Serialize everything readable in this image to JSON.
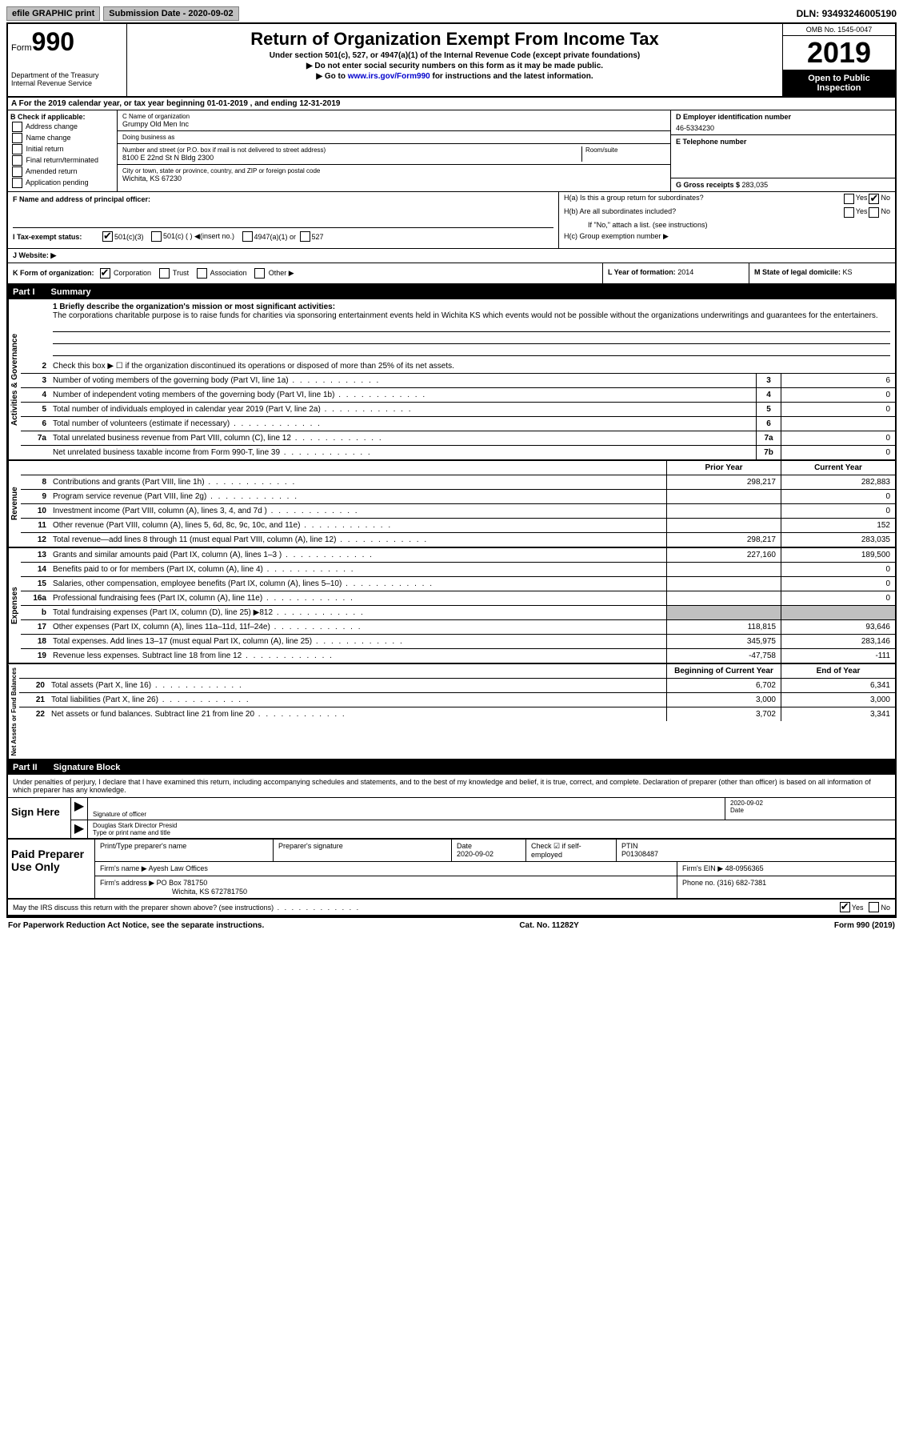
{
  "top": {
    "efile": "efile GRAPHIC print",
    "subdate_label": "Submission Date - ",
    "subdate": "2020-09-02",
    "dln_label": "DLN: ",
    "dln": "93493246005190"
  },
  "header": {
    "form_label": "Form",
    "form_num": "990",
    "dept": "Department of the Treasury\nInternal Revenue Service",
    "title": "Return of Organization Exempt From Income Tax",
    "sub1": "Under section 501(c), 527, or 4947(a)(1) of the Internal Revenue Code (except private foundations)",
    "sub2": "▶ Do not enter social security numbers on this form as it may be made public.",
    "sub3_pre": "▶ Go to ",
    "sub3_link": "www.irs.gov/Form990",
    "sub3_post": " for instructions and the latest information.",
    "omb": "OMB No. 1545-0047",
    "year": "2019",
    "open": "Open to Public Inspection"
  },
  "rowA": "A For the 2019 calendar year, or tax year beginning 01-01-2019    , and ending 12-31-2019",
  "B": {
    "title": "B Check if applicable:",
    "opts": [
      "Address change",
      "Name change",
      "Initial return",
      "Final return/terminated",
      "Amended return",
      "Application pending"
    ]
  },
  "C": {
    "name_lbl": "C Name of organization",
    "name": "Grumpy Old Men Inc",
    "dba_lbl": "Doing business as",
    "dba": "",
    "street_lbl": "Number and street (or P.O. box if mail is not delivered to street address)",
    "room_lbl": "Room/suite",
    "street": "8100 E 22nd St N Bldg 2300",
    "city_lbl": "City or town, state or province, country, and ZIP or foreign postal code",
    "city": "Wichita, KS  67230"
  },
  "D": {
    "lbl": "D Employer identification number",
    "val": "46-5334230"
  },
  "E": {
    "lbl": "E Telephone number",
    "val": ""
  },
  "G": {
    "lbl": "G Gross receipts $ ",
    "val": "283,035"
  },
  "F": {
    "lbl": "F  Name and address of principal officer:",
    "val": ""
  },
  "H": {
    "a": "H(a)  Is this a group return for subordinates?",
    "a_yes": "Yes",
    "a_no": "No",
    "b": "H(b)  Are all subordinates included?",
    "b_note": "If \"No,\" attach a list. (see instructions)",
    "c": "H(c)  Group exemption number ▶"
  },
  "I": {
    "lbl": "I    Tax-exempt status:",
    "o1": "501(c)(3)",
    "o2": "501(c) (  ) ◀(insert no.)",
    "o3": "4947(a)(1) or",
    "o4": "527"
  },
  "J": {
    "lbl": "J   Website: ▶",
    "val": ""
  },
  "K": {
    "lbl": "K Form of organization:",
    "o1": "Corporation",
    "o2": "Trust",
    "o3": "Association",
    "o4": "Other ▶"
  },
  "L": {
    "lbl": "L Year of formation: ",
    "val": "2014"
  },
  "M": {
    "lbl": "M State of legal domicile: ",
    "val": "KS"
  },
  "part1": {
    "num": "Part I",
    "title": "Summary"
  },
  "summary": {
    "l1_lbl": "1   Briefly describe the organization's mission or most significant activities:",
    "l1_text": "The corporations charitable purpose is to raise funds for charities via sponsoring entertainment events held in Wichita KS which events would not be possible without the organizations underwritings and guarantees for the entertainers.",
    "l2": "Check this box ▶ ☐  if the organization discontinued its operations or disposed of more than 25% of its net assets.",
    "prior_lbl": "Prior Year",
    "current_lbl": "Current Year",
    "bocy_lbl": "Beginning of Current Year",
    "eoy_lbl": "End of Year",
    "sections": {
      "activities": {
        "label": "Activities & Governance"
      },
      "revenue": {
        "label": "Revenue"
      },
      "expenses": {
        "label": "Expenses"
      },
      "netassets": {
        "label": "Net Assets or Fund Balances"
      }
    },
    "lines_act": [
      {
        "n": "3",
        "d": "Number of voting members of the governing body (Part VI, line 1a)",
        "box": "3",
        "v": "6"
      },
      {
        "n": "4",
        "d": "Number of independent voting members of the governing body (Part VI, line 1b)",
        "box": "4",
        "v": "0"
      },
      {
        "n": "5",
        "d": "Total number of individuals employed in calendar year 2019 (Part V, line 2a)",
        "box": "5",
        "v": "0"
      },
      {
        "n": "6",
        "d": "Total number of volunteers (estimate if necessary)",
        "box": "6",
        "v": ""
      },
      {
        "n": "7a",
        "d": "Total unrelated business revenue from Part VIII, column (C), line 12",
        "box": "7a",
        "v": "0"
      },
      {
        "n": "",
        "d": "Net unrelated business taxable income from Form 990-T, line 39",
        "box": "7b",
        "v": "0"
      }
    ],
    "lines_rev": [
      {
        "n": "8",
        "d": "Contributions and grants (Part VIII, line 1h)",
        "p": "298,217",
        "c": "282,883"
      },
      {
        "n": "9",
        "d": "Program service revenue (Part VIII, line 2g)",
        "p": "",
        "c": "0"
      },
      {
        "n": "10",
        "d": "Investment income (Part VIII, column (A), lines 3, 4, and 7d )",
        "p": "",
        "c": "0"
      },
      {
        "n": "11",
        "d": "Other revenue (Part VIII, column (A), lines 5, 6d, 8c, 9c, 10c, and 11e)",
        "p": "",
        "c": "152"
      },
      {
        "n": "12",
        "d": "Total revenue—add lines 8 through 11 (must equal Part VIII, column (A), line 12)",
        "p": "298,217",
        "c": "283,035"
      }
    ],
    "lines_exp": [
      {
        "n": "13",
        "d": "Grants and similar amounts paid (Part IX, column (A), lines 1–3 )",
        "p": "227,160",
        "c": "189,500"
      },
      {
        "n": "14",
        "d": "Benefits paid to or for members (Part IX, column (A), line 4)",
        "p": "",
        "c": "0"
      },
      {
        "n": "15",
        "d": "Salaries, other compensation, employee benefits (Part IX, column (A), lines 5–10)",
        "p": "",
        "c": "0"
      },
      {
        "n": "16a",
        "d": "Professional fundraising fees (Part IX, column (A), line 11e)",
        "p": "",
        "c": "0"
      },
      {
        "n": "b",
        "d": "Total fundraising expenses (Part IX, column (D), line 25) ▶812",
        "p": "shade",
        "c": "shade"
      },
      {
        "n": "17",
        "d": "Other expenses (Part IX, column (A), lines 11a–11d, 11f–24e)",
        "p": "118,815",
        "c": "93,646"
      },
      {
        "n": "18",
        "d": "Total expenses. Add lines 13–17 (must equal Part IX, column (A), line 25)",
        "p": "345,975",
        "c": "283,146"
      },
      {
        "n": "19",
        "d": "Revenue less expenses. Subtract line 18 from line 12",
        "p": "-47,758",
        "c": "-111"
      }
    ],
    "lines_net": [
      {
        "n": "20",
        "d": "Total assets (Part X, line 16)",
        "p": "6,702",
        "c": "6,341"
      },
      {
        "n": "21",
        "d": "Total liabilities (Part X, line 26)",
        "p": "3,000",
        "c": "3,000"
      },
      {
        "n": "22",
        "d": "Net assets or fund balances. Subtract line 21 from line 20",
        "p": "3,702",
        "c": "3,341"
      }
    ]
  },
  "part2": {
    "num": "Part II",
    "title": "Signature Block"
  },
  "sig": {
    "perjury": "Under penalties of perjury, I declare that I have examined this return, including accompanying schedules and statements, and to the best of my knowledge and belief, it is true, correct, and complete. Declaration of preparer (other than officer) is based on all information of which preparer has any knowledge.",
    "sign_here": "Sign Here",
    "sig_officer_lbl": "Signature of officer",
    "date_lbl": "Date",
    "date": "2020-09-02",
    "name": "Douglas Stark  Director Presid",
    "name_lbl": "Type or print name and title"
  },
  "prep": {
    "title": "Paid Preparer Use Only",
    "print_lbl": "Print/Type preparer's name",
    "sig_lbl": "Preparer's signature",
    "pdate_lbl": "Date",
    "pdate": "2020-09-02",
    "check_lbl": "Check ☑ if self-employed",
    "ptin_lbl": "PTIN",
    "ptin": "P01308487",
    "firm_name_lbl": "Firm's name    ▶ ",
    "firm_name": "Ayesh Law Offices",
    "firm_ein_lbl": "Firm's EIN ▶ ",
    "firm_ein": "48-0956365",
    "firm_addr_lbl": "Firm's address ▶ ",
    "firm_addr1": "PO Box 781750",
    "firm_addr2": "Wichita, KS  672781750",
    "phone_lbl": "Phone no. ",
    "phone": "(316) 682-7381",
    "discuss": "May the IRS discuss this return with the preparer shown above? (see instructions)",
    "yes": "Yes",
    "no": "No"
  },
  "footer": {
    "left": "For Paperwork Reduction Act Notice, see the separate instructions.",
    "mid": "Cat. No. 11282Y",
    "right": "Form 990 (2019)"
  }
}
